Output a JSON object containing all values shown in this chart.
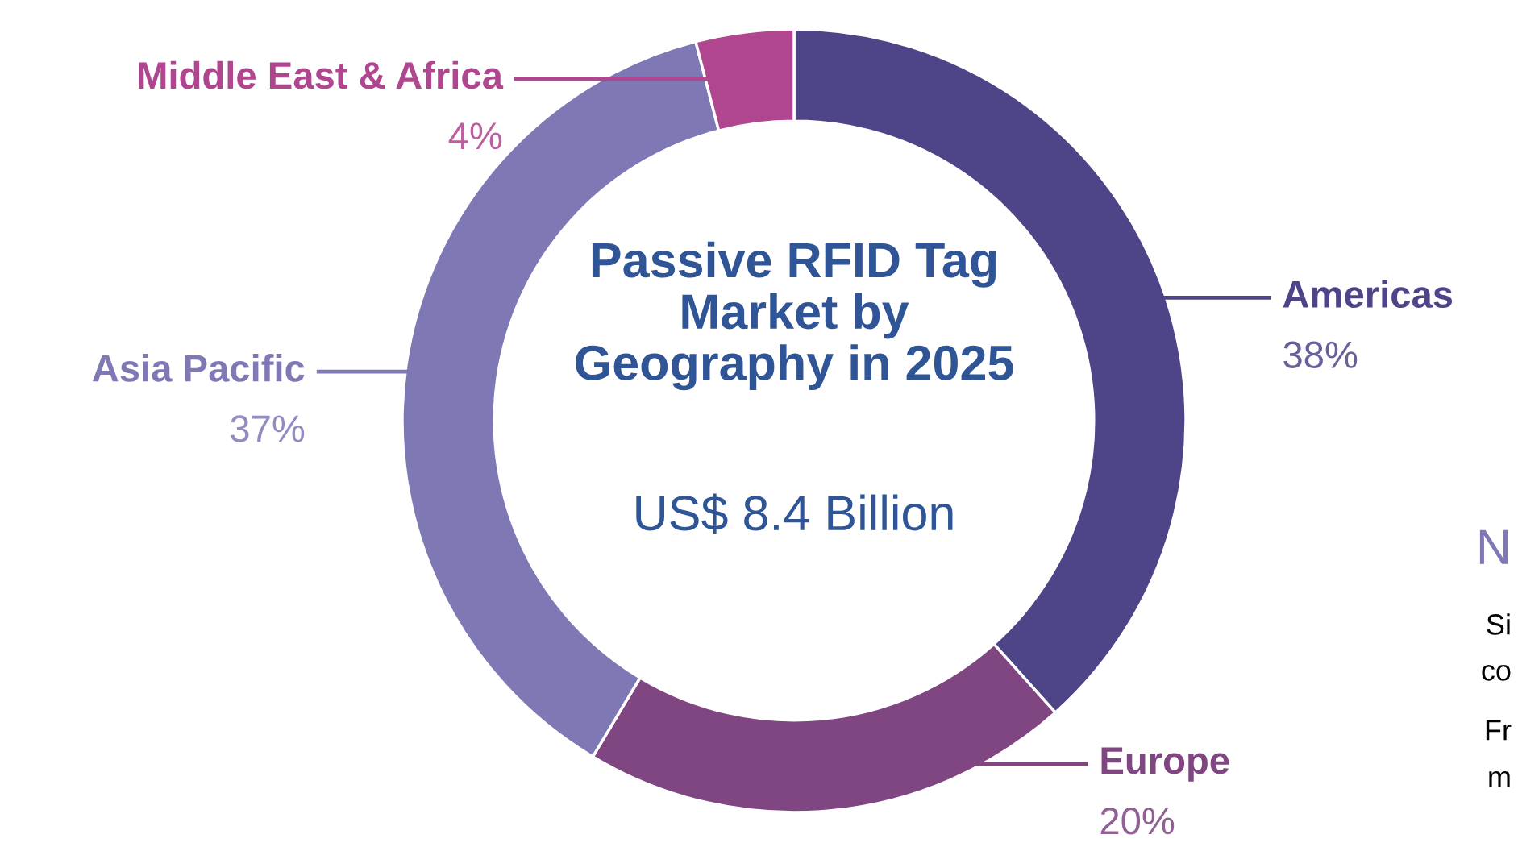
{
  "chart_data": {
    "type": "donut",
    "title": "Passive RFID Tag\nMarket by\nGeography in 2025",
    "subtitle": "US$ 8.4 Billion",
    "categories": [
      "Americas",
      "Europe",
      "Asia Pacific",
      "Middle East & Africa"
    ],
    "values": [
      38,
      20,
      37,
      4
    ],
    "colors": [
      "#4d4588",
      "#7f4682",
      "#7e78b5",
      "#b04690"
    ],
    "value_labels": [
      "38%",
      "20%",
      "37%",
      "4%"
    ],
    "annotations": [
      "N",
      "Si",
      "co",
      "Fr",
      "m"
    ],
    "legend": false
  }
}
